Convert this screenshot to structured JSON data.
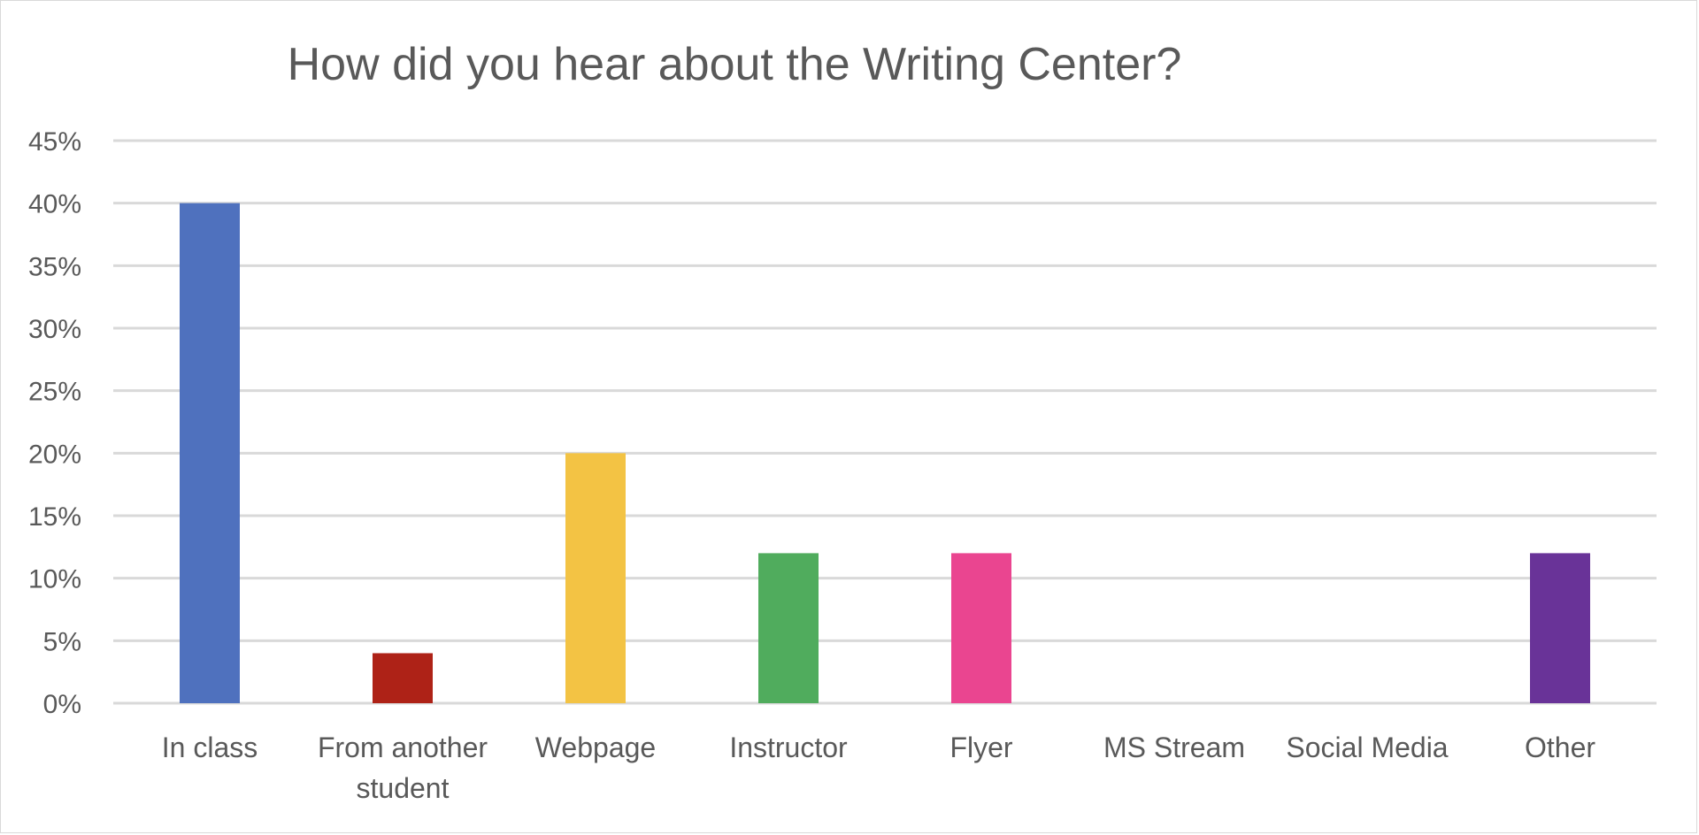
{
  "chart_data": {
    "type": "bar",
    "title": "How did you hear about the Writing Center?",
    "xlabel": "",
    "ylabel": "",
    "ylim": [
      0,
      0.45
    ],
    "yticks": [
      "0%",
      "5%",
      "10%",
      "15%",
      "20%",
      "25%",
      "30%",
      "35%",
      "40%",
      "45%"
    ],
    "categories": [
      [
        "In class"
      ],
      [
        "From another",
        "student"
      ],
      [
        "Webpage"
      ],
      [
        "Instructor"
      ],
      [
        "Flyer"
      ],
      [
        "MS Stream"
      ],
      [
        "Social Media"
      ],
      [
        "Other"
      ]
    ],
    "values": [
      0.4,
      0.04,
      0.2,
      0.12,
      0.12,
      0.0,
      0.0,
      0.12
    ],
    "colors": [
      "#4f71be",
      "#ae2217",
      "#f3c344",
      "#50ac5d",
      "#ea4590",
      "#4f71be",
      "#4f71be",
      "#693398"
    ],
    "grid": true,
    "legend": "none"
  }
}
